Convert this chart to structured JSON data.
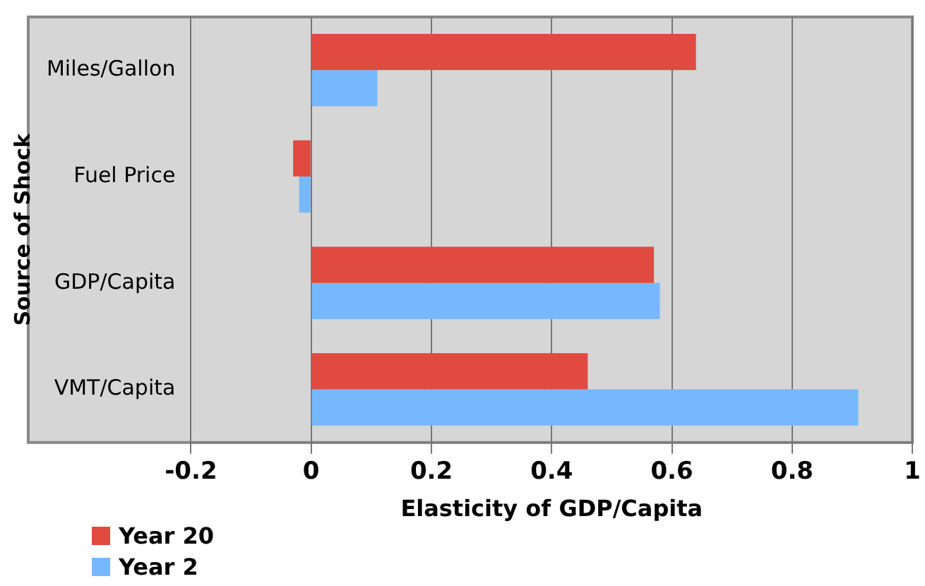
{
  "chart_data": {
    "type": "bar",
    "orientation": "horizontal",
    "xlabel": "Elasticity of GDP/Capita",
    "ylabel": "Source of Shock",
    "categories": [
      "Miles/Gallon",
      "Fuel Price",
      "GDP/Capita",
      "VMT/Capita"
    ],
    "series": [
      {
        "name": "Year 20",
        "color": "#e04a41",
        "values": [
          0.64,
          -0.03,
          0.57,
          0.46
        ]
      },
      {
        "name": "Year 2",
        "color": "#77b8fc",
        "values": [
          0.11,
          -0.02,
          0.58,
          0.91
        ]
      }
    ],
    "xlim": [
      -0.2,
      1
    ],
    "xticks": [
      -0.2,
      0,
      0.2,
      0.4,
      0.6,
      0.8,
      1
    ],
    "grid": "x",
    "legend": "bottom left"
  }
}
